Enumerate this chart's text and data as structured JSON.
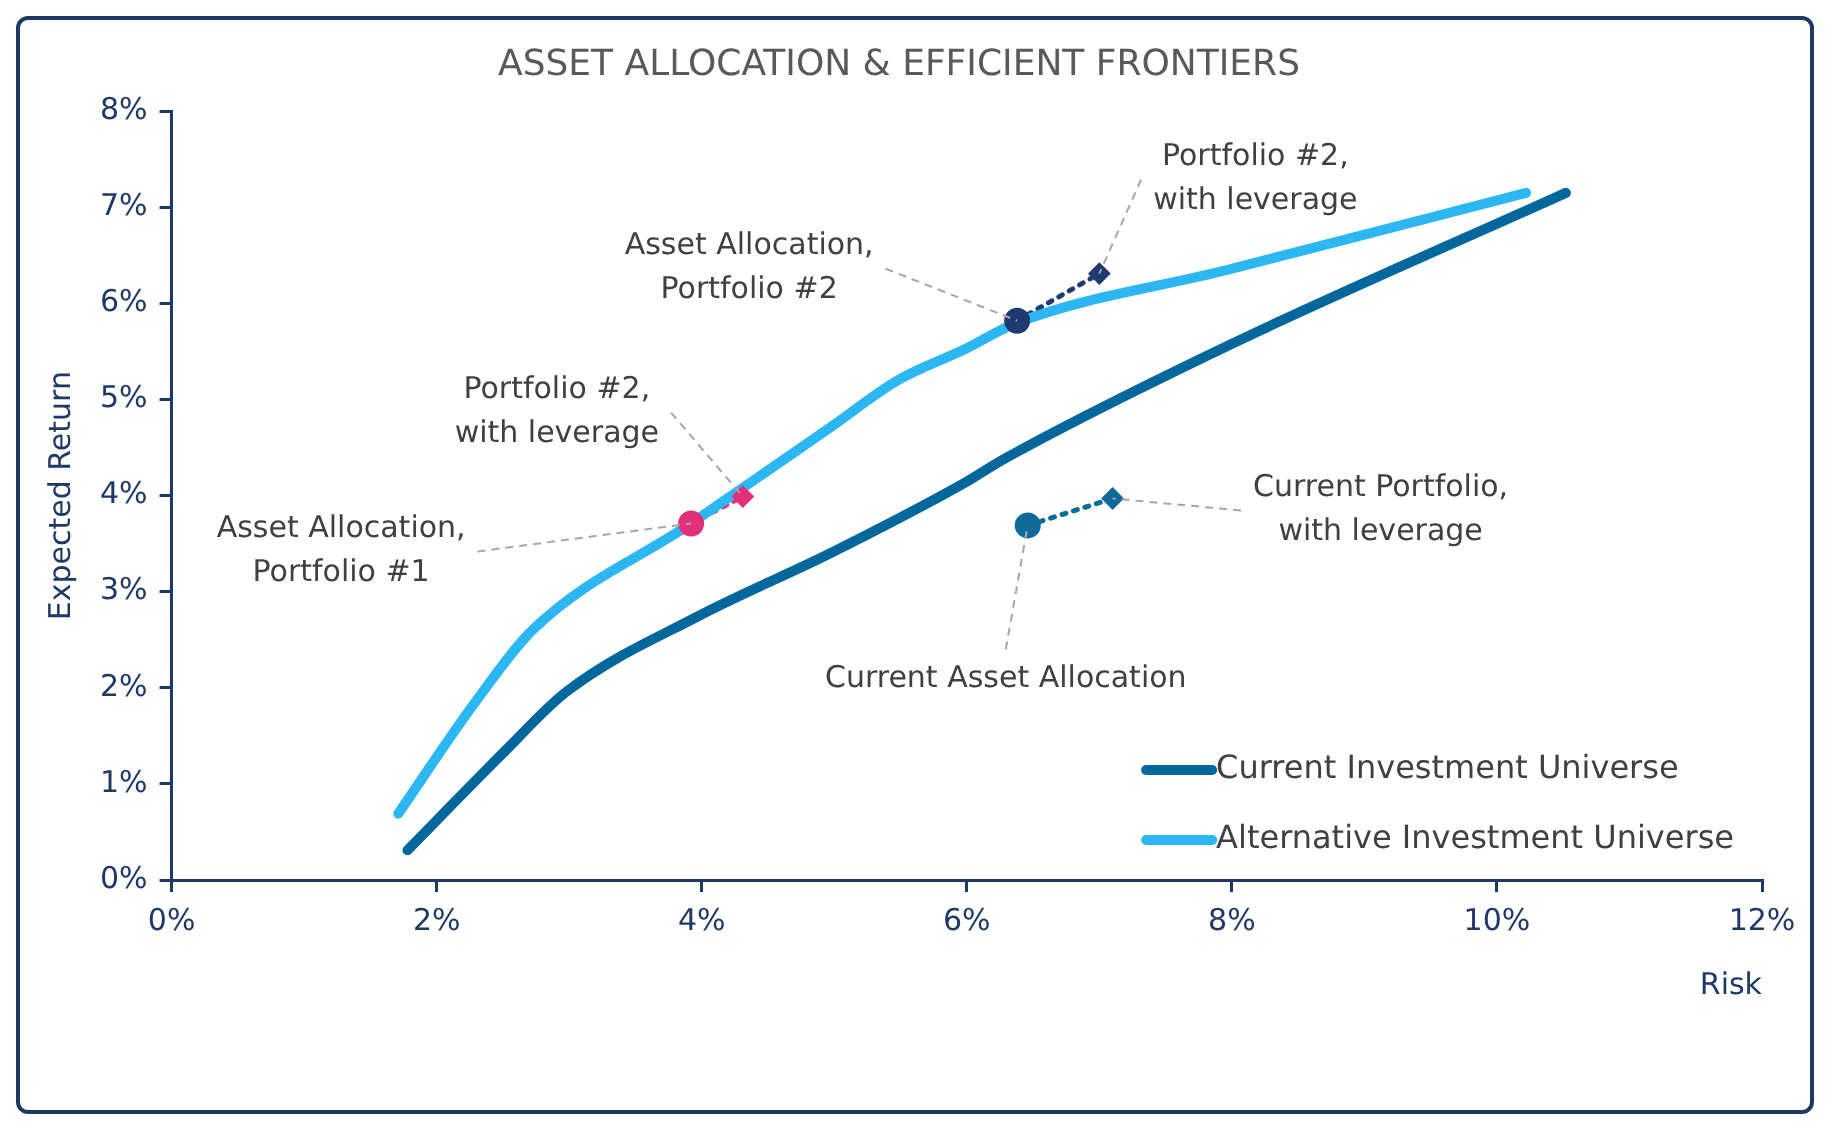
{
  "chart_data": {
    "type": "line",
    "title": "ASSET ALLOCATION & EFFICIENT FRONTIERS",
    "xlabel": "Risk",
    "ylabel": "Expected Return",
    "xlim": [
      0,
      12
    ],
    "xticks": [
      {
        "value": 0,
        "label": "0%"
      },
      {
        "value": 2,
        "label": "2%"
      },
      {
        "value": 4,
        "label": "4%"
      },
      {
        "value": 6,
        "label": "6%"
      },
      {
        "value": 8,
        "label": "8%"
      },
      {
        "value": 10,
        "label": "10%"
      },
      {
        "value": 12,
        "label": "12%"
      }
    ],
    "ylim": [
      0,
      8
    ],
    "yticks": [
      {
        "value": 0,
        "label": "0%"
      },
      {
        "value": 1,
        "label": "1%"
      },
      {
        "value": 2,
        "label": "2%"
      },
      {
        "value": 3,
        "label": "3%"
      },
      {
        "value": 4,
        "label": "4%"
      },
      {
        "value": 5,
        "label": "5%"
      },
      {
        "value": 6,
        "label": "6%"
      },
      {
        "value": 7,
        "label": "7%"
      },
      {
        "value": 8,
        "label": "8%"
      }
    ],
    "legend": "bottom right",
    "marker": "none",
    "series": [
      {
        "name": "Current Investment Universe",
        "color": "#00679c",
        "x": [
          1.78,
          2.5,
          2.98,
          3.98,
          4.97,
          5.98,
          6.28,
          7.97,
          10.52
        ],
        "values": [
          0.31,
          1.32,
          1.96,
          2.75,
          3.4,
          4.13,
          4.38,
          5.56,
          7.15
        ]
      },
      {
        "name": "Alternative Investment Universe",
        "color": "#2db7f2",
        "x": [
          1.71,
          2.28,
          2.73,
          3.92,
          4.97,
          5.48,
          5.98,
          6.38,
          7.97,
          10.22
        ],
        "values": [
          0.69,
          1.83,
          2.61,
          3.71,
          4.71,
          5.2,
          5.52,
          5.8,
          6.35,
          7.15
        ]
      },
      {
        "type": "line",
        "line_style": "dotted",
        "color": "#e0307a",
        "x": [
          3.92,
          4.31
        ],
        "values": [
          3.71,
          3.99
        ]
      },
      {
        "type": "line",
        "line_style": "dotted",
        "color": "#1f3a6e",
        "x": [
          6.38,
          7.0
        ],
        "values": [
          5.82,
          6.31
        ]
      },
      {
        "type": "line",
        "line_style": "dotted",
        "color": "#0f6a9a",
        "x": [
          6.46,
          7.1
        ],
        "values": [
          3.69,
          3.97
        ]
      },
      {
        "type": "scatter",
        "marker": "circle",
        "x": [
          3.92,
          6.38,
          6.46
        ],
        "values": [
          3.71,
          5.82,
          3.69
        ],
        "colors": [
          "#e0307a",
          "#1f3a6e",
          "#0f6a9a"
        ]
      },
      {
        "type": "scatter",
        "marker": "diamond",
        "x": [
          4.31,
          7.0,
          7.1
        ],
        "values": [
          3.99,
          6.31,
          3.97
        ],
        "colors": [
          "#e0307a",
          "#1f3a6e",
          "#0f6a9a"
        ]
      }
    ],
    "annotations": [
      {
        "text": "Asset Allocation, Portfolio #2",
        "x": 6.38,
        "y": 5.82
      },
      {
        "text": "Portfolio #2, with leverage",
        "x": 7.0,
        "y": 6.31
      },
      {
        "text": "Portfolio #2, with leverage",
        "x": 4.31,
        "y": 3.99
      },
      {
        "text": "Asset Allocation, Portfolio #1",
        "x": 3.92,
        "y": 3.71
      },
      {
        "text": "Current Portfolio, with leverage",
        "x": 7.1,
        "y": 3.97
      },
      {
        "text": "Current Asset Allocation",
        "x": 6.46,
        "y": 3.69
      }
    ]
  }
}
